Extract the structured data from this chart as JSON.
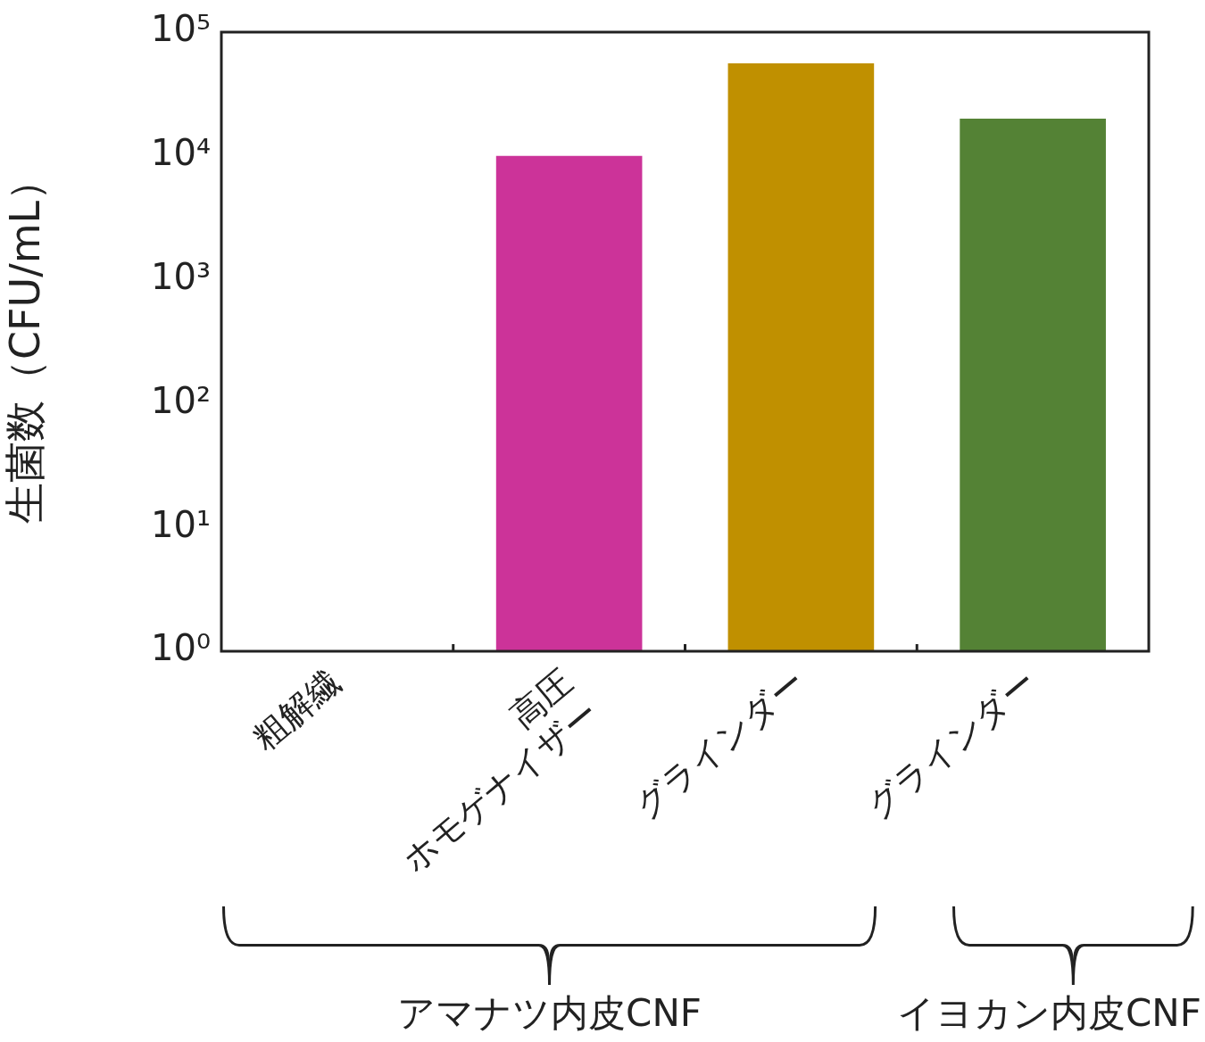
{
  "chart_data": {
    "type": "bar",
    "ylabel": "生菌数（CFU/mL）",
    "categories": [
      "粗解繊",
      "高圧\nホモゲナイザー",
      "グラインダー",
      "グラインダー"
    ],
    "values": [
      null,
      10000,
      56000,
      20000
    ],
    "colors": [
      "#ffffff",
      "#cc3399",
      "#c09000",
      "#548235"
    ],
    "log": true,
    "ylim": [
      1,
      100000
    ],
    "yticks": [
      {
        "value": 1,
        "label": "10⁰"
      },
      {
        "value": 10,
        "label": "10¹"
      },
      {
        "value": 100,
        "label": "10²"
      },
      {
        "value": 1000,
        "label": "10³"
      },
      {
        "value": 10000,
        "label": "10⁴"
      },
      {
        "value": 100000,
        "label": "10⁵"
      }
    ],
    "grid": false,
    "legend": false,
    "annotations": [
      "アマナツ内皮CNF",
      "イヨカン内皮CNF"
    ]
  }
}
